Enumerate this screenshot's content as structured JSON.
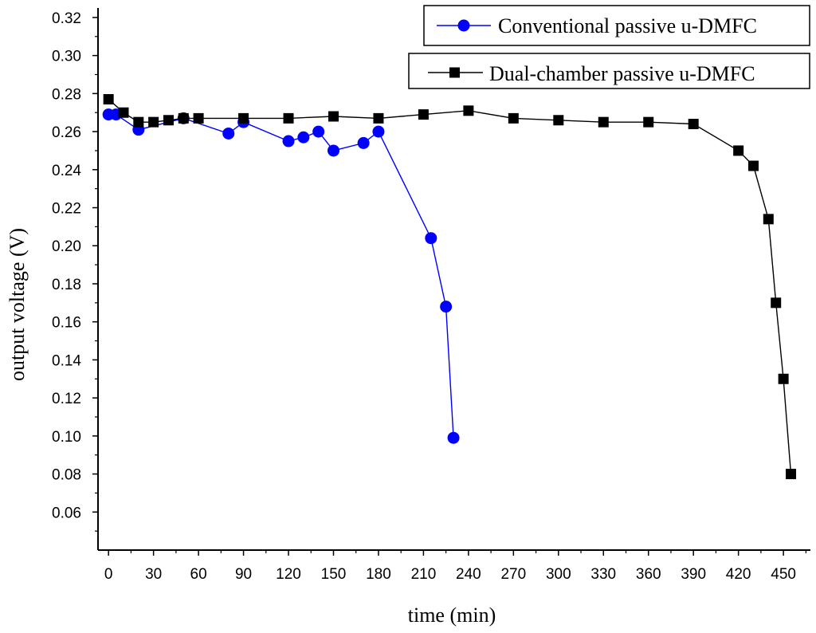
{
  "chart_data": {
    "type": "line",
    "xlabel": "time (min)",
    "ylabel": "output voltage (V)",
    "xlim": [
      -7,
      468
    ],
    "ylim": [
      0.04,
      0.325
    ],
    "x_ticks": [
      0,
      30,
      60,
      90,
      120,
      150,
      180,
      210,
      240,
      270,
      300,
      330,
      360,
      390,
      420,
      450
    ],
    "y_ticks": [
      0.06,
      0.08,
      0.1,
      0.12,
      0.14,
      0.16,
      0.18,
      0.2,
      0.22,
      0.24,
      0.26,
      0.28,
      0.3,
      0.32
    ],
    "x_tick_labels": [
      "0",
      "30",
      "60",
      "90",
      "120",
      "150",
      "180",
      "210",
      "240",
      "270",
      "300",
      "330",
      "360",
      "390",
      "420",
      "450"
    ],
    "y_tick_labels": [
      "0.06",
      "0.08",
      "0.10",
      "0.12",
      "0.14",
      "0.16",
      "0.18",
      "0.20",
      "0.22",
      "0.24",
      "0.26",
      "0.28",
      "0.30",
      "0.32"
    ],
    "legend_position": "top-right",
    "grid": false,
    "series": [
      {
        "name": "Conventional passive u-DMFC",
        "color": "#0000ff",
        "marker": "circle",
        "x": [
          0,
          5,
          20,
          50,
          80,
          90,
          120,
          130,
          140,
          150,
          170,
          180,
          215,
          225,
          230
        ],
        "y": [
          0.269,
          0.269,
          0.261,
          0.267,
          0.259,
          0.265,
          0.255,
          0.257,
          0.26,
          0.25,
          0.254,
          0.26,
          0.204,
          0.168,
          0.099
        ]
      },
      {
        "name": "Dual-chamber passive u-DMFC",
        "color": "#000000",
        "marker": "square",
        "x": [
          0,
          10,
          20,
          30,
          40,
          50,
          60,
          90,
          120,
          150,
          180,
          210,
          240,
          270,
          300,
          330,
          360,
          390,
          420,
          430,
          440,
          445,
          450,
          455
        ],
        "y": [
          0.277,
          0.27,
          0.265,
          0.265,
          0.266,
          0.267,
          0.267,
          0.267,
          0.267,
          0.268,
          0.267,
          0.269,
          0.271,
          0.267,
          0.266,
          0.265,
          0.265,
          0.264,
          0.25,
          0.242,
          0.214,
          0.17,
          0.13,
          0.08
        ]
      }
    ]
  }
}
